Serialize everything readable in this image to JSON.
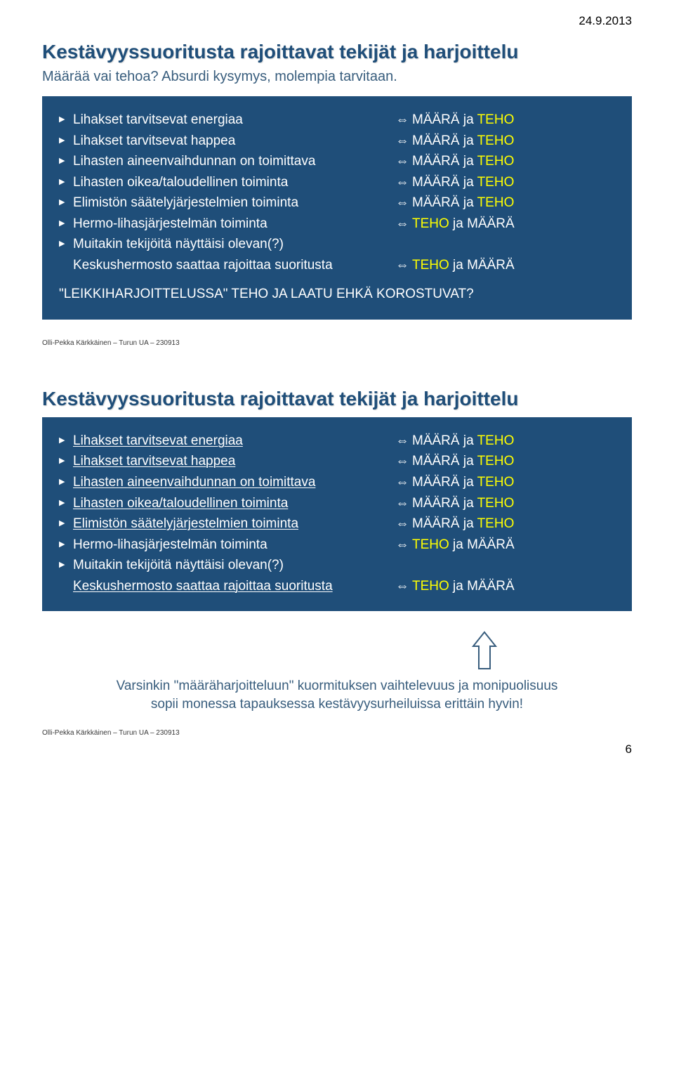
{
  "date_top": "24.9.2013",
  "slide1": {
    "title": "Kestävyyssuoritusta rajoittavat tekijät ja harjoittelu",
    "subtitle": "Määrää vai tehoa? Absurdi kysymys, molempia tarvitaan.",
    "rows": [
      {
        "left": "Lihakset tarvitsevat energiaa",
        "right_a": "MÄÄRÄ ja ",
        "right_b": "TEHO"
      },
      {
        "left": "Lihakset tarvitsevat happea",
        "right_a": "MÄÄRÄ ja ",
        "right_b": "TEHO"
      },
      {
        "left": "Lihasten aineenvaihdunnan on toimittava",
        "right_a": "MÄÄRÄ ja ",
        "right_b": "TEHO"
      },
      {
        "left": "Lihasten oikea/taloudellinen toiminta",
        "right_a": "MÄÄRÄ ja ",
        "right_b": "TEHO"
      },
      {
        "left": "Elimistön säätelyjärjestelmien toiminta",
        "right_a": "MÄÄRÄ ja ",
        "right_b": "TEHO"
      },
      {
        "left": "Hermo-lihasjärjestelmän toiminta",
        "right_a": "TEHO",
        "right_b": " ja MÄÄRÄ",
        "swap": true
      },
      {
        "left": "Muitakin tekijöitä näyttäisi olevan(?)"
      },
      {
        "left_indent": "Keskushermosto saattaa rajoittaa suoritusta",
        "right_a": "TEHO",
        "right_b": " ja MÄÄRÄ",
        "swap": true
      }
    ],
    "footer": "\"LEIKKIHARJOITTELUSSA\" TEHO JA LAATU EHKÄ KOROSTUVAT?"
  },
  "credit": "Olli-Pekka Kärkkäinen – Turun UA – 230913",
  "slide2": {
    "title": "Kestävyyssuoritusta rajoittavat tekijät ja harjoittelu",
    "rows": [
      {
        "left": "Lihakset tarvitsevat energiaa",
        "u": true,
        "right_a": "MÄÄRÄ ja ",
        "right_b": "TEHO"
      },
      {
        "left": "Lihakset tarvitsevat happea",
        "u": true,
        "right_a": "MÄÄRÄ ja ",
        "right_b": "TEHO"
      },
      {
        "left": "Lihasten aineenvaihdunnan on toimittava",
        "u": true,
        "right_a": "MÄÄRÄ ja ",
        "right_b": "TEHO"
      },
      {
        "left": "Lihasten oikea/taloudellinen toiminta",
        "u": true,
        "right_a": "MÄÄRÄ ja ",
        "right_b": "TEHO"
      },
      {
        "left": "Elimistön säätelyjärjestelmien toiminta",
        "u": true,
        "right_a": "MÄÄRÄ ja ",
        "right_b": "TEHO"
      },
      {
        "left": "Hermo-lihasjärjestelmän toiminta",
        "right_a": "TEHO",
        "right_b": " ja MÄÄRÄ",
        "swap": true
      },
      {
        "left": "Muitakin tekijöitä näyttäisi olevan(?)"
      },
      {
        "left_indent": "Keskushermosto saattaa rajoittaa suoritusta",
        "u": true,
        "right_a": "TEHO",
        "right_b": " ja MÄÄRÄ",
        "swap": true
      }
    ],
    "bottom_note_1": "Varsinkin \"määräharjoitteluun\" kuormituksen vaihtelevuus ja monipuolisuus",
    "bottom_note_2": "sopii monessa tapauksessa kestävyysurheiluissa erittäin hyvin!"
  },
  "arrow_glyph": "⇔",
  "tri_glyph": "▶",
  "page_num": "6",
  "colors": {
    "box_bg": "#1f4e79",
    "teho": "#ffff00",
    "title": "#1f4e79"
  }
}
